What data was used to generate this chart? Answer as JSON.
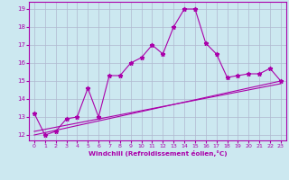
{
  "xlabel": "Windchill (Refroidissement éolien,°C)",
  "background_color": "#cce8f0",
  "line_color": "#aa00aa",
  "grid_color": "#b0b8d0",
  "x": [
    0,
    1,
    2,
    3,
    4,
    5,
    6,
    7,
    8,
    9,
    10,
    11,
    12,
    13,
    14,
    15,
    16,
    17,
    18,
    19,
    20,
    21,
    22,
    23
  ],
  "y_main": [
    13.2,
    12.0,
    12.2,
    12.9,
    13.0,
    14.6,
    13.0,
    15.3,
    15.3,
    16.0,
    16.3,
    17.0,
    16.5,
    18.0,
    19.0,
    19.0,
    17.1,
    16.5,
    15.2,
    15.3,
    15.4,
    15.4,
    15.7,
    15.0
  ],
  "y_line1_start": 12.0,
  "y_line1_end": 15.0,
  "y_line2_start": 12.2,
  "y_line2_end": 14.85,
  "ylim": [
    11.7,
    19.4
  ],
  "yticks": [
    12,
    13,
    14,
    15,
    16,
    17,
    18,
    19
  ],
  "xlim": [
    -0.5,
    23.5
  ],
  "xticks": [
    0,
    1,
    2,
    3,
    4,
    5,
    6,
    7,
    8,
    9,
    10,
    11,
    12,
    13,
    14,
    15,
    16,
    17,
    18,
    19,
    20,
    21,
    22,
    23
  ]
}
